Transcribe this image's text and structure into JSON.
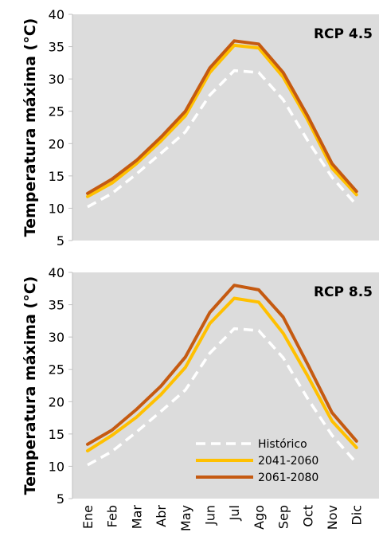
{
  "chart_data": [
    {
      "type": "line",
      "title": "RCP 4.5",
      "ylabel": "Temperatura máxima (°C)",
      "xlabel": "",
      "categories": [
        "Ene",
        "Feb",
        "Mar",
        "Abr",
        "May",
        "Jun",
        "Jul",
        "Ago",
        "Sep",
        "Oct",
        "Nov",
        "Dic"
      ],
      "ylim": [
        5,
        40
      ],
      "yticks": [
        5,
        10,
        15,
        20,
        25,
        30,
        35,
        40
      ],
      "grid": false,
      "background": "#dcdcdc",
      "series": [
        {
          "name": "Histórico",
          "color": "#ffffff",
          "dash": true,
          "values": [
            10.2,
            12.3,
            15.3,
            18.5,
            21.8,
            27.5,
            31.3,
            31.0,
            26.8,
            20.5,
            14.8,
            10.5
          ]
        },
        {
          "name": "2041-2060",
          "color": "#ffc000",
          "dash": false,
          "values": [
            11.8,
            13.9,
            16.9,
            20.4,
            24.3,
            31.0,
            35.2,
            34.8,
            30.3,
            23.7,
            16.2,
            12.1
          ]
        },
        {
          "name": "2061-2080",
          "color": "#c55a11",
          "dash": false,
          "values": [
            12.3,
            14.5,
            17.4,
            21.0,
            25.0,
            31.7,
            35.9,
            35.4,
            31.0,
            24.3,
            16.9,
            12.6
          ]
        }
      ]
    },
    {
      "type": "line",
      "title": "RCP 8.5",
      "ylabel": "Temperatura máxima (°C)",
      "xlabel": "",
      "categories": [
        "Ene",
        "Feb",
        "Mar",
        "Abr",
        "May",
        "Jun",
        "Jul",
        "Ago",
        "Sep",
        "Oct",
        "Nov",
        "Dic"
      ],
      "ylim": [
        5,
        40
      ],
      "yticks": [
        5,
        10,
        15,
        20,
        25,
        30,
        35,
        40
      ],
      "grid": false,
      "background": "#dcdcdc",
      "legend": "bottom-right",
      "series": [
        {
          "name": "Histórico",
          "color": "#ffffff",
          "dash": true,
          "values": [
            10.2,
            12.3,
            15.3,
            18.5,
            21.8,
            27.5,
            31.3,
            31.0,
            26.8,
            20.5,
            14.8,
            10.5
          ]
        },
        {
          "name": "2041-2060",
          "color": "#ffc000",
          "dash": false,
          "values": [
            12.4,
            14.8,
            17.6,
            21.1,
            25.3,
            32.1,
            36.0,
            35.4,
            30.6,
            24.0,
            17.0,
            12.9
          ]
        },
        {
          "name": "2061-2080",
          "color": "#c55a11",
          "dash": false,
          "values": [
            13.4,
            15.6,
            18.8,
            22.4,
            26.9,
            33.8,
            38.0,
            37.3,
            33.1,
            25.8,
            18.3,
            13.9
          ]
        }
      ]
    }
  ]
}
